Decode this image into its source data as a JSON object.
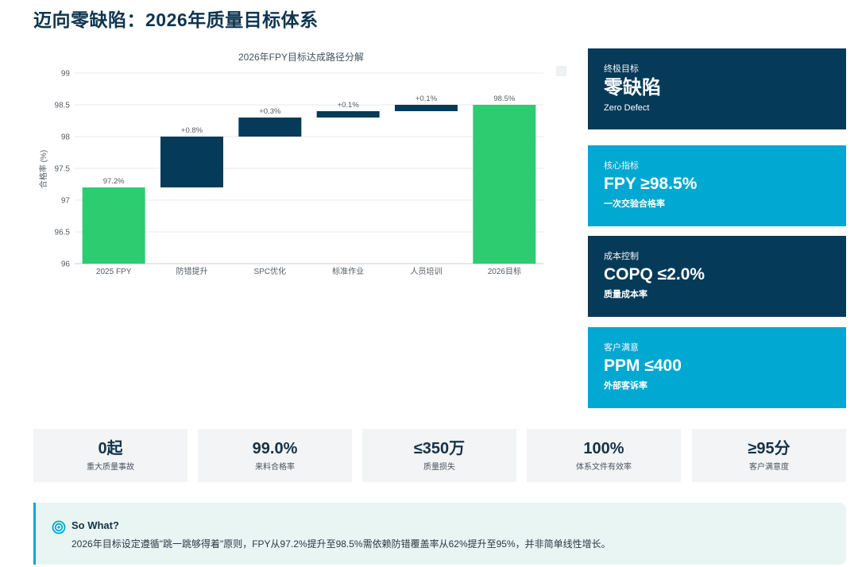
{
  "header": {
    "title": "迈向零缺陷：2026年质量目标体系"
  },
  "chart_data": {
    "type": "bar",
    "subtype": "waterfall",
    "title": "2026年FPY目标达成路径分解",
    "ylabel": "合格率 (%)",
    "ylim": [
      96,
      99
    ],
    "yticks": [
      "96",
      "96.5",
      "97",
      "97.5",
      "98",
      "98.5",
      "99"
    ],
    "categories": [
      "2025 FPY",
      "防错提升",
      "SPC优化",
      "标准作业",
      "人员培训",
      "2026目标"
    ],
    "bars": [
      {
        "base": 96,
        "top": 97.2,
        "label": "97.2%",
        "kind": "total"
      },
      {
        "base": 97.2,
        "top": 98.0,
        "label": "+0.8%",
        "kind": "delta"
      },
      {
        "base": 98.0,
        "top": 98.3,
        "label": "+0.3%",
        "kind": "delta"
      },
      {
        "base": 98.3,
        "top": 98.4,
        "label": "+0.1%",
        "kind": "delta"
      },
      {
        "base": 98.4,
        "top": 98.5,
        "label": "+0.1%",
        "kind": "delta"
      },
      {
        "base": 96,
        "top": 98.5,
        "label": "98.5%",
        "kind": "total"
      }
    ],
    "colors": {
      "total": "#2ecc71",
      "delta": "#053a59"
    }
  },
  "cards": [
    {
      "label": "终极目标",
      "value": "零缺陷",
      "sub": "Zero Defect"
    },
    {
      "label": "核心指标",
      "value": "FPY ≥98.5%",
      "sub": "一次交验合格率"
    },
    {
      "label": "成本控制",
      "value": "COPQ ≤2.0%",
      "sub": "质量成本率"
    },
    {
      "label": "客户满意",
      "value": "PPM ≤400",
      "sub": "外部客诉率"
    }
  ],
  "kpis": [
    {
      "value": "0起",
      "label": "重大质量事故"
    },
    {
      "value": "99.0%",
      "label": "来料合格率"
    },
    {
      "value": "≤350万",
      "label": "质量损失"
    },
    {
      "value": "100%",
      "label": "体系文件有效率"
    },
    {
      "value": "≥95分",
      "label": "客户满意度"
    }
  ],
  "sowhat": {
    "title": "So What?",
    "text": "2026年目标设定遵循\"跳一跳够得着\"原则，FPY从97.2%提升至98.5%需依赖防错覆盖率从62%提升至95%，并非简单线性增长。"
  },
  "colors": {
    "dark": "#053a59",
    "cyan": "#01a8d1",
    "green": "#2ecc71"
  }
}
